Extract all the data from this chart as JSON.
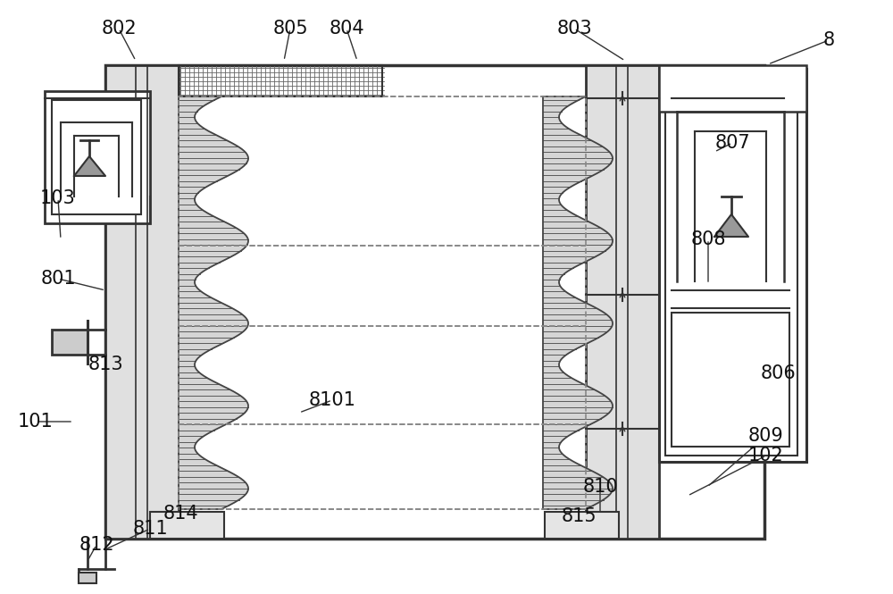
{
  "bg_color": "#ffffff",
  "line_color": "#333333",
  "dashed_color": "#888888",
  "figsize": [
    10.0,
    6.65
  ],
  "dpi": 100
}
